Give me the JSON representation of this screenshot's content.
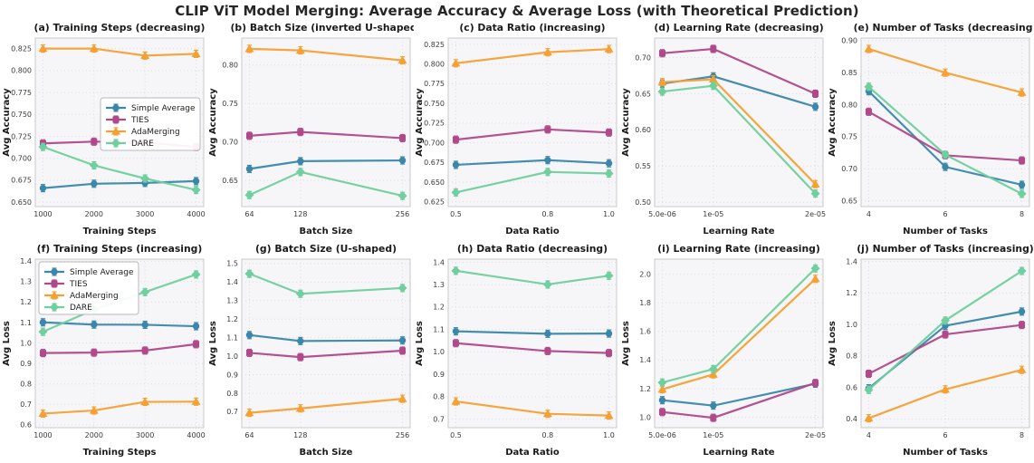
{
  "chart_data": {
    "type": "line",
    "figure_title": "CLIP ViT Model Merging: Average Accuracy & Average Loss (with Theoretical Prediction)",
    "layout": {
      "rows": 2,
      "cols": 5,
      "grid": "on",
      "grid_style": "dotted"
    },
    "style": {
      "plot_bg": "#f6f6f8",
      "grid_color": "#dddde3",
      "spine_color": "#c9c9ce",
      "tick_color": "#3b3b3b",
      "text_color": "#1a1a1a",
      "legend_bg": "#ffffff",
      "legend_border": "#b9b9bd"
    },
    "series_meta": [
      {
        "name": "Simple Average",
        "color": "#3a87ab",
        "marker": "circle"
      },
      {
        "name": "TIES",
        "color": "#b0488a",
        "marker": "square"
      },
      {
        "name": "AdaMerging",
        "color": "#f5a033",
        "marker": "triangle"
      },
      {
        "name": "DARE",
        "color": "#70cf9e",
        "marker": "diamond"
      }
    ],
    "subplots": [
      {
        "id": "a",
        "title": "(a) Training Steps (decreasing)",
        "xlabel": "Training Steps",
        "ylabel": "Avg Accuracy",
        "x": [
          1000,
          2000,
          3000,
          4000
        ],
        "xtick_labels": [
          "1000",
          "2000",
          "3000",
          "4000"
        ],
        "ytick_values": [
          0.65,
          0.675,
          0.7,
          0.725,
          0.75,
          0.775,
          0.8,
          0.825
        ],
        "ytick_labels": [
          "0.650",
          "0.675",
          "0.700",
          "0.725",
          "0.750",
          "0.775",
          "0.800",
          "0.825"
        ],
        "ylim": [
          0.645,
          0.837
        ],
        "legend": "center-right",
        "series": [
          {
            "name": "Simple Average",
            "values": [
              0.666,
              0.671,
              0.672,
              0.674
            ]
          },
          {
            "name": "TIES",
            "values": [
              0.717,
              0.719,
              0.718,
              0.713
            ]
          },
          {
            "name": "AdaMerging",
            "values": [
              0.825,
              0.825,
              0.817,
              0.819
            ]
          },
          {
            "name": "DARE",
            "values": [
              0.713,
              0.692,
              0.677,
              0.664
            ]
          }
        ]
      },
      {
        "id": "b",
        "title": "(b) Batch Size (inverted U-shaped)",
        "xlabel": "Batch Size",
        "ylabel": "Avg Accuracy",
        "x": [
          64,
          128,
          256
        ],
        "xtick_labels": [
          "64",
          "128",
          "256"
        ],
        "ytick_values": [
          0.65,
          0.7,
          0.75,
          0.8
        ],
        "ytick_labels": [
          "0.65",
          "0.70",
          "0.75",
          "0.80"
        ],
        "ylim": [
          0.616,
          0.835
        ],
        "legend": null,
        "series": [
          {
            "name": "Simple Average",
            "values": [
              0.665,
              0.675,
              0.676
            ]
          },
          {
            "name": "TIES",
            "values": [
              0.708,
              0.713,
              0.705
            ]
          },
          {
            "name": "AdaMerging",
            "values": [
              0.821,
              0.819,
              0.806
            ]
          },
          {
            "name": "DARE",
            "values": [
              0.631,
              0.661,
              0.63
            ]
          }
        ]
      },
      {
        "id": "c",
        "title": "(c) Data Ratio (increasing)",
        "xlabel": "Data Ratio",
        "ylabel": "Avg Accuracy",
        "x": [
          0.5,
          0.8,
          1.0
        ],
        "xtick_labels": [
          "0.5",
          "0.8",
          "1.0"
        ],
        "ytick_values": [
          0.625,
          0.65,
          0.675,
          0.7,
          0.725,
          0.75,
          0.775,
          0.8,
          0.825
        ],
        "ytick_labels": [
          "0.625",
          "0.650",
          "0.675",
          "0.700",
          "0.725",
          "0.750",
          "0.775",
          "0.800",
          "0.825"
        ],
        "ylim": [
          0.619,
          0.833
        ],
        "legend": null,
        "series": [
          {
            "name": "Simple Average",
            "values": [
              0.672,
              0.678,
              0.674
            ]
          },
          {
            "name": "TIES",
            "values": [
              0.704,
              0.717,
              0.713
            ]
          },
          {
            "name": "AdaMerging",
            "values": [
              0.801,
              0.815,
              0.819
            ]
          },
          {
            "name": "DARE",
            "values": [
              0.637,
              0.663,
              0.661
            ]
          }
        ]
      },
      {
        "id": "d",
        "title": "(d) Learning Rate (decreasing)",
        "xlabel": "Learning Rate",
        "ylabel": "Avg Accuracy",
        "x": [
          5e-06,
          1e-05,
          2e-05
        ],
        "xtick_labels": [
          "5.0e-06",
          "1e-05",
          "2e-05"
        ],
        "ytick_values": [
          0.5,
          0.55,
          0.6,
          0.65,
          0.7
        ],
        "ytick_labels": [
          "0.50",
          "0.55",
          "0.60",
          "0.65",
          "0.70"
        ],
        "ylim": [
          0.494,
          0.727
        ],
        "legend": null,
        "series": [
          {
            "name": "Simple Average",
            "values": [
              0.664,
              0.674,
              0.632
            ]
          },
          {
            "name": "TIES",
            "values": [
              0.706,
              0.712,
              0.65
            ]
          },
          {
            "name": "AdaMerging",
            "values": [
              0.666,
              0.67,
              0.525
            ]
          },
          {
            "name": "DARE",
            "values": [
              0.653,
              0.661,
              0.512
            ]
          }
        ]
      },
      {
        "id": "e",
        "title": "(e) Number of Tasks (decreasing)",
        "xlabel": "Number of Tasks",
        "ylabel": "Avg Accuracy",
        "x": [
          4,
          6,
          8
        ],
        "xtick_labels": [
          "4",
          "6",
          "8"
        ],
        "ytick_values": [
          0.65,
          0.7,
          0.75,
          0.8,
          0.85,
          0.9
        ],
        "ytick_labels": [
          "0.65",
          "0.70",
          "0.75",
          "0.80",
          "0.85",
          "0.90"
        ],
        "ylim": [
          0.641,
          0.904
        ],
        "legend": null,
        "series": [
          {
            "name": "Simple Average",
            "values": [
              0.821,
              0.703,
              0.675
            ]
          },
          {
            "name": "TIES",
            "values": [
              0.789,
              0.721,
              0.713
            ]
          },
          {
            "name": "AdaMerging",
            "values": [
              0.887,
              0.85,
              0.819
            ]
          },
          {
            "name": "DARE",
            "values": [
              0.828,
              0.722,
              0.661
            ]
          }
        ]
      },
      {
        "id": "f",
        "title": "(f) Training Steps (increasing)",
        "xlabel": "Training Steps",
        "ylabel": "Avg Loss",
        "x": [
          1000,
          2000,
          3000,
          4000
        ],
        "xtick_labels": [
          "1000",
          "2000",
          "3000",
          "4000"
        ],
        "ytick_values": [
          0.6,
          0.7,
          0.8,
          0.9,
          1.0,
          1.1,
          1.2,
          1.3,
          1.4
        ],
        "ytick_labels": [
          "0.6",
          "0.7",
          "0.8",
          "0.9",
          "1.0",
          "1.1",
          "1.2",
          "1.3",
          "1.4"
        ],
        "ylim": [
          0.586,
          1.41
        ],
        "legend": "top-left",
        "series": [
          {
            "name": "Simple Average",
            "values": [
              1.101,
              1.09,
              1.089,
              1.082
            ]
          },
          {
            "name": "TIES",
            "values": [
              0.951,
              0.953,
              0.963,
              0.994
            ]
          },
          {
            "name": "AdaMerging",
            "values": [
              0.655,
              0.67,
              0.712,
              0.713
            ]
          },
          {
            "name": "DARE",
            "values": [
              1.055,
              1.163,
              1.249,
              1.335
            ]
          }
        ]
      },
      {
        "id": "g",
        "title": "(g) Batch Size (U-shaped)",
        "xlabel": "Batch Size",
        "ylabel": "Avg Loss",
        "x": [
          64,
          128,
          256
        ],
        "xtick_labels": [
          "64",
          "128",
          "256"
        ],
        "ytick_values": [
          0.7,
          0.8,
          0.9,
          1.0,
          1.1,
          1.2,
          1.3,
          1.4,
          1.5
        ],
        "ytick_labels": [
          "0.7",
          "0.8",
          "0.9",
          "1.0",
          "1.1",
          "1.2",
          "1.3",
          "1.4",
          "1.5"
        ],
        "ylim": [
          0.614,
          1.524
        ],
        "legend": null,
        "series": [
          {
            "name": "Simple Average",
            "values": [
              1.114,
              1.082,
              1.085
            ]
          },
          {
            "name": "TIES",
            "values": [
              1.018,
              0.995,
              1.03
            ]
          },
          {
            "name": "AdaMerging",
            "values": [
              0.694,
              0.718,
              0.77
            ]
          },
          {
            "name": "DARE",
            "values": [
              1.445,
              1.337,
              1.368
            ]
          }
        ]
      },
      {
        "id": "h",
        "title": "(h) Data Ratio (decreasing)",
        "xlabel": "Data Ratio",
        "ylabel": "Avg Loss",
        "x": [
          0.5,
          0.8,
          1.0
        ],
        "xtick_labels": [
          "0.5",
          "0.8",
          "1.0"
        ],
        "ytick_values": [
          0.7,
          0.8,
          0.9,
          1.0,
          1.1,
          1.2,
          1.3,
          1.4
        ],
        "ytick_labels": [
          "0.7",
          "0.8",
          "0.9",
          "1.0",
          "1.1",
          "1.2",
          "1.3",
          "1.4"
        ],
        "ylim": [
          0.662,
          1.414
        ],
        "legend": null,
        "series": [
          {
            "name": "Simple Average",
            "values": [
              1.092,
              1.081,
              1.082
            ]
          },
          {
            "name": "TIES",
            "values": [
              1.039,
              1.004,
              0.995
            ]
          },
          {
            "name": "AdaMerging",
            "values": [
              0.779,
              0.724,
              0.716
            ]
          },
          {
            "name": "DARE",
            "values": [
              1.362,
              1.301,
              1.34
            ]
          }
        ]
      },
      {
        "id": "i",
        "title": "(i) Learning Rate (increasing)",
        "xlabel": "Learning Rate",
        "ylabel": "Avg Loss",
        "x": [
          5e-06,
          1e-05,
          2e-05
        ],
        "xtick_labels": [
          "5.0e-06",
          "1e-05",
          "2e-05"
        ],
        "ytick_values": [
          1.0,
          1.2,
          1.4,
          1.6,
          1.8,
          2.0
        ],
        "ytick_labels": [
          "1.0",
          "1.2",
          "1.4",
          "1.6",
          "1.8",
          "2.0"
        ],
        "ylim": [
          0.928,
          2.105
        ],
        "legend": null,
        "series": [
          {
            "name": "Simple Average",
            "values": [
              1.12,
              1.082,
              1.235
            ]
          },
          {
            "name": "TIES",
            "values": [
              1.037,
              0.997,
              1.24
            ]
          },
          {
            "name": "AdaMerging",
            "values": [
              1.196,
              1.3,
              1.967
            ]
          },
          {
            "name": "DARE",
            "values": [
              1.243,
              1.337,
              2.04
            ]
          }
        ]
      },
      {
        "id": "j",
        "title": "(j) Number of Tasks (increasing)",
        "xlabel": "Number of Tasks",
        "ylabel": "Avg Loss",
        "x": [
          4,
          6,
          8
        ],
        "xtick_labels": [
          "4",
          "6",
          "8"
        ],
        "ytick_values": [
          0.4,
          0.6,
          0.8,
          1.0,
          1.2,
          1.4
        ],
        "ytick_labels": [
          "0.4",
          "0.6",
          "0.8",
          "1.0",
          "1.2",
          "1.4"
        ],
        "ylim": [
          0.345,
          1.415
        ],
        "legend": null,
        "series": [
          {
            "name": "Simple Average",
            "values": [
              0.595,
              0.992,
              1.082
            ]
          },
          {
            "name": "TIES",
            "values": [
              0.687,
              0.937,
              0.997
            ]
          },
          {
            "name": "AdaMerging",
            "values": [
              0.405,
              0.588,
              0.712
            ]
          },
          {
            "name": "DARE",
            "values": [
              0.585,
              1.025,
              1.34
            ]
          }
        ]
      }
    ]
  }
}
